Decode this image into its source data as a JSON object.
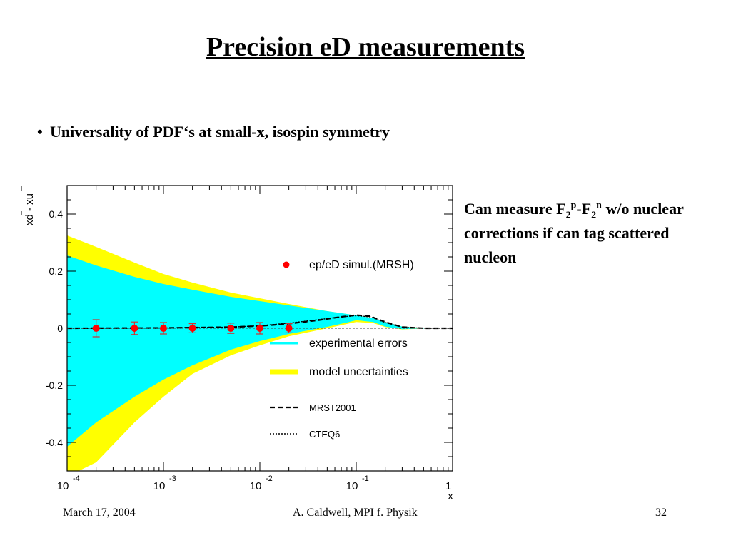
{
  "slide": {
    "title": "Precision eD measurements",
    "bullet_marker": "•",
    "bullet": "Universality of PDF‘s at small-x, isospin symmetry",
    "note": {
      "pre": "Can measure F",
      "sub1": "2",
      "sup1": "p",
      "mid": "-F",
      "sub2": "2",
      "sup2": "n",
      "post": " w/o nuclear corrections if can tag scattered nucleon"
    },
    "footer": {
      "date": "March 17, 2004",
      "author": "A. Caldwell, MPI f. Physik",
      "page": "32"
    }
  },
  "colors": {
    "experimental": "#00ffff",
    "model": "#ffff00",
    "points": "#ff0000",
    "errorbars": "#cc3333",
    "axis": "#000000"
  },
  "chart_data": {
    "type": "area",
    "xscale": "log",
    "xlim": [
      0.0001,
      1
    ],
    "ylim": [
      -0.5,
      0.5
    ],
    "xlabel": "x",
    "ylabel": "xd - xu",
    "ylabel_bar": true,
    "x_tick_labels": [
      {
        "x": 0.0001,
        "base": "10",
        "exp": "-4"
      },
      {
        "x": 0.001,
        "base": "10",
        "exp": "-3"
      },
      {
        "x": 0.01,
        "base": "10",
        "exp": "-2"
      },
      {
        "x": 0.1,
        "base": "10",
        "exp": "-1"
      },
      {
        "x": 1,
        "base": "1",
        "exp": ""
      }
    ],
    "y_ticks": [
      0.4,
      0.2,
      0,
      -0.2,
      -0.4
    ],
    "y_tick_labels": [
      "0.4",
      "0.2",
      "0",
      "-0.2",
      "-0.4"
    ],
    "legend": [
      {
        "label": "ep/eD simul.(MRSH)",
        "style": "marker"
      },
      {
        "label": "experimental errors",
        "style": "cyan-line"
      },
      {
        "label": "model uncertainties",
        "style": "yellow-thick"
      },
      {
        "label": "MRST2001",
        "style": "dashed"
      },
      {
        "label": "CTEQ6",
        "style": "dotted"
      }
    ],
    "legend_placement": "right",
    "x": [
      0.0001,
      0.0002,
      0.0005,
      0.001,
      0.002,
      0.005,
      0.01,
      0.02,
      0.05,
      0.08,
      0.1,
      0.15,
      0.2,
      0.3,
      0.5,
      0.7,
      1
    ],
    "model_upper": [
      0.325,
      0.285,
      0.23,
      0.19,
      0.16,
      0.125,
      0.105,
      0.085,
      0.06,
      0.05,
      0.045,
      0.035,
      0.022,
      0.006,
      0.001,
      0.0,
      0.0
    ],
    "exp_upper": [
      0.255,
      0.22,
      0.18,
      0.155,
      0.135,
      0.11,
      0.095,
      0.08,
      0.06,
      0.05,
      0.045,
      0.035,
      0.022,
      0.006,
      0.001,
      0.0,
      0.0
    ],
    "exp_lower": [
      -0.415,
      -0.33,
      -0.24,
      -0.18,
      -0.13,
      -0.075,
      -0.045,
      -0.02,
      0.005,
      0.02,
      0.028,
      0.022,
      0.006,
      -0.003,
      -0.001,
      0.0,
      0.0
    ],
    "model_lower": [
      -0.52,
      -0.47,
      -0.33,
      -0.24,
      -0.16,
      -0.095,
      -0.06,
      -0.028,
      0.0,
      0.015,
      0.022,
      0.018,
      0.004,
      -0.004,
      -0.001,
      0.0,
      0.0
    ],
    "mrst2001": {
      "x": [
        0.0001,
        0.001,
        0.005,
        0.01,
        0.02,
        0.04,
        0.07,
        0.1,
        0.14,
        0.2,
        0.3,
        0.5,
        0.7,
        1
      ],
      "y": [
        0.0,
        0.001,
        0.004,
        0.008,
        0.016,
        0.028,
        0.04,
        0.046,
        0.042,
        0.022,
        0.004,
        0.0,
        0.0,
        0.0
      ]
    },
    "cteq6": {
      "x": [
        0.0001,
        0.001,
        0.005,
        0.01,
        0.02,
        0.04,
        0.07,
        0.1,
        0.14,
        0.2,
        0.3,
        0.5,
        0.7,
        1
      ],
      "y": [
        0.0,
        0.001,
        0.004,
        0.009,
        0.018,
        0.03,
        0.04,
        0.044,
        0.04,
        0.02,
        0.004,
        0.0,
        0.0,
        0.0
      ]
    },
    "points": {
      "name": "ep/eD simul.(MRSH)",
      "x": [
        0.0002,
        0.0005,
        0.001,
        0.002,
        0.005,
        0.01,
        0.02
      ],
      "y": [
        0,
        0,
        0,
        0,
        0,
        0,
        0
      ],
      "err": [
        0.03,
        0.022,
        0.02,
        0.016,
        0.018,
        0.02,
        0.016
      ]
    }
  }
}
